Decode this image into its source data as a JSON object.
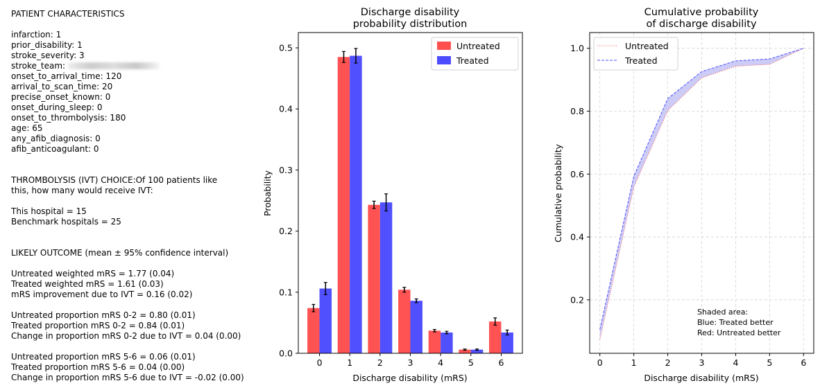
{
  "patient": {
    "heading": "PATIENT CHARACTERISTICS",
    "lines": [
      "infarction: 1",
      "prior_disability: 1",
      "stroke_severity: 3",
      "stroke_team:",
      "onset_to_arrival_time: 120",
      "arrival_to_scan_time: 20",
      "precise_onset_known: 0",
      "onset_during_sleep: 0",
      "onset_to_thrombolysis: 180",
      "age: 65",
      "any_afib_diagnosis: 0",
      "afib_anticoagulant: 0"
    ]
  },
  "choice": {
    "heading_line1": "THROMBOLYSIS (IVT) CHOICE:Of 100 patients like",
    "heading_line2": "this, how many would receive IVT:",
    "this_hospital": "This hospital = 15",
    "benchmark": "Benchmark hospitals = 25"
  },
  "outcome": {
    "heading": "LIKELY OUTCOME (mean ± 95% confidence interval)",
    "group1": [
      "Untreated weighted mRS = 1.77 (0.04)",
      "Treated weighted mRS = 1.61 (0.03)",
      "mRS improvement due to IVT = 0.16 (0.02)"
    ],
    "group2": [
      "Untreated proportion mRS 0-2 = 0.80 (0.01)",
      "Treated proportion mRS 0-2 = 0.84 (0.01)",
      "Change in proportion mRS 0-2 due to IVT = 0.04 (0.00)"
    ],
    "group3": [
      "Untreated proportion mRS 5-6 = 0.06 (0.01)",
      "Treated proportion mRS 5-6 = 0.04 (0.00)",
      "Change in proportion mRS 5-6 due to IVT = -0.02 (0.00)"
    ]
  },
  "colors": {
    "untreated": "#ff4f4f",
    "treated": "#4d4dff",
    "shade": "#c9c9f5",
    "grid": "#d3d3d3"
  },
  "chart_data": [
    {
      "type": "bar",
      "title": [
        "Discharge disability",
        "probability distribution"
      ],
      "xlabel": "Discharge disability (mRS)",
      "ylabel": "Probability",
      "categories": [
        "0",
        "1",
        "2",
        "3",
        "4",
        "5",
        "6"
      ],
      "ylim": [
        0,
        0.525
      ],
      "yticks": [
        0.0,
        0.1,
        0.2,
        0.3,
        0.4,
        0.5
      ],
      "ytick_labels": [
        "0.0",
        "0.1",
        "0.2",
        "0.3",
        "0.4",
        "0.5"
      ],
      "legend_position": "top-right",
      "grid": false,
      "series": [
        {
          "name": "Untreated",
          "color": "#ff4f4f",
          "values": [
            0.074,
            0.485,
            0.243,
            0.104,
            0.037,
            0.006,
            0.052
          ],
          "errors": [
            0.006,
            0.009,
            0.006,
            0.004,
            0.002,
            0.001,
            0.006
          ]
        },
        {
          "name": "Treated",
          "color": "#4d4dff",
          "values": [
            0.106,
            0.487,
            0.247,
            0.086,
            0.034,
            0.006,
            0.034
          ],
          "errors": [
            0.01,
            0.012,
            0.014,
            0.003,
            0.002,
            0.001,
            0.004
          ]
        }
      ]
    },
    {
      "type": "line",
      "title": [
        "Cumulative probability",
        "of discharge disability"
      ],
      "xlabel": "Discharge disability (mRS)",
      "ylabel": "Cumulative probability",
      "x": [
        0,
        1,
        2,
        3,
        4,
        5,
        6
      ],
      "xlim": [
        -0.3,
        6.3
      ],
      "ylim": [
        0.03,
        1.05
      ],
      "yticks": [
        0.2,
        0.4,
        0.6,
        0.8,
        1.0
      ],
      "ytick_labels": [
        "0.2",
        "0.4",
        "0.6",
        "0.8",
        "1.0"
      ],
      "legend_position": "top-left",
      "grid": true,
      "series": [
        {
          "name": "Untreated",
          "color": "#ff4f4f",
          "style": "dotted",
          "values": [
            0.074,
            0.559,
            0.802,
            0.906,
            0.943,
            0.949,
            1.0
          ]
        },
        {
          "name": "Treated",
          "color": "#4d4dff",
          "style": "dashed",
          "values": [
            0.106,
            0.593,
            0.84,
            0.926,
            0.96,
            0.966,
            1.0
          ]
        }
      ],
      "annotation": [
        "Shaded area:",
        "Blue: Treated better",
        "Red: Untreated better"
      ]
    }
  ]
}
